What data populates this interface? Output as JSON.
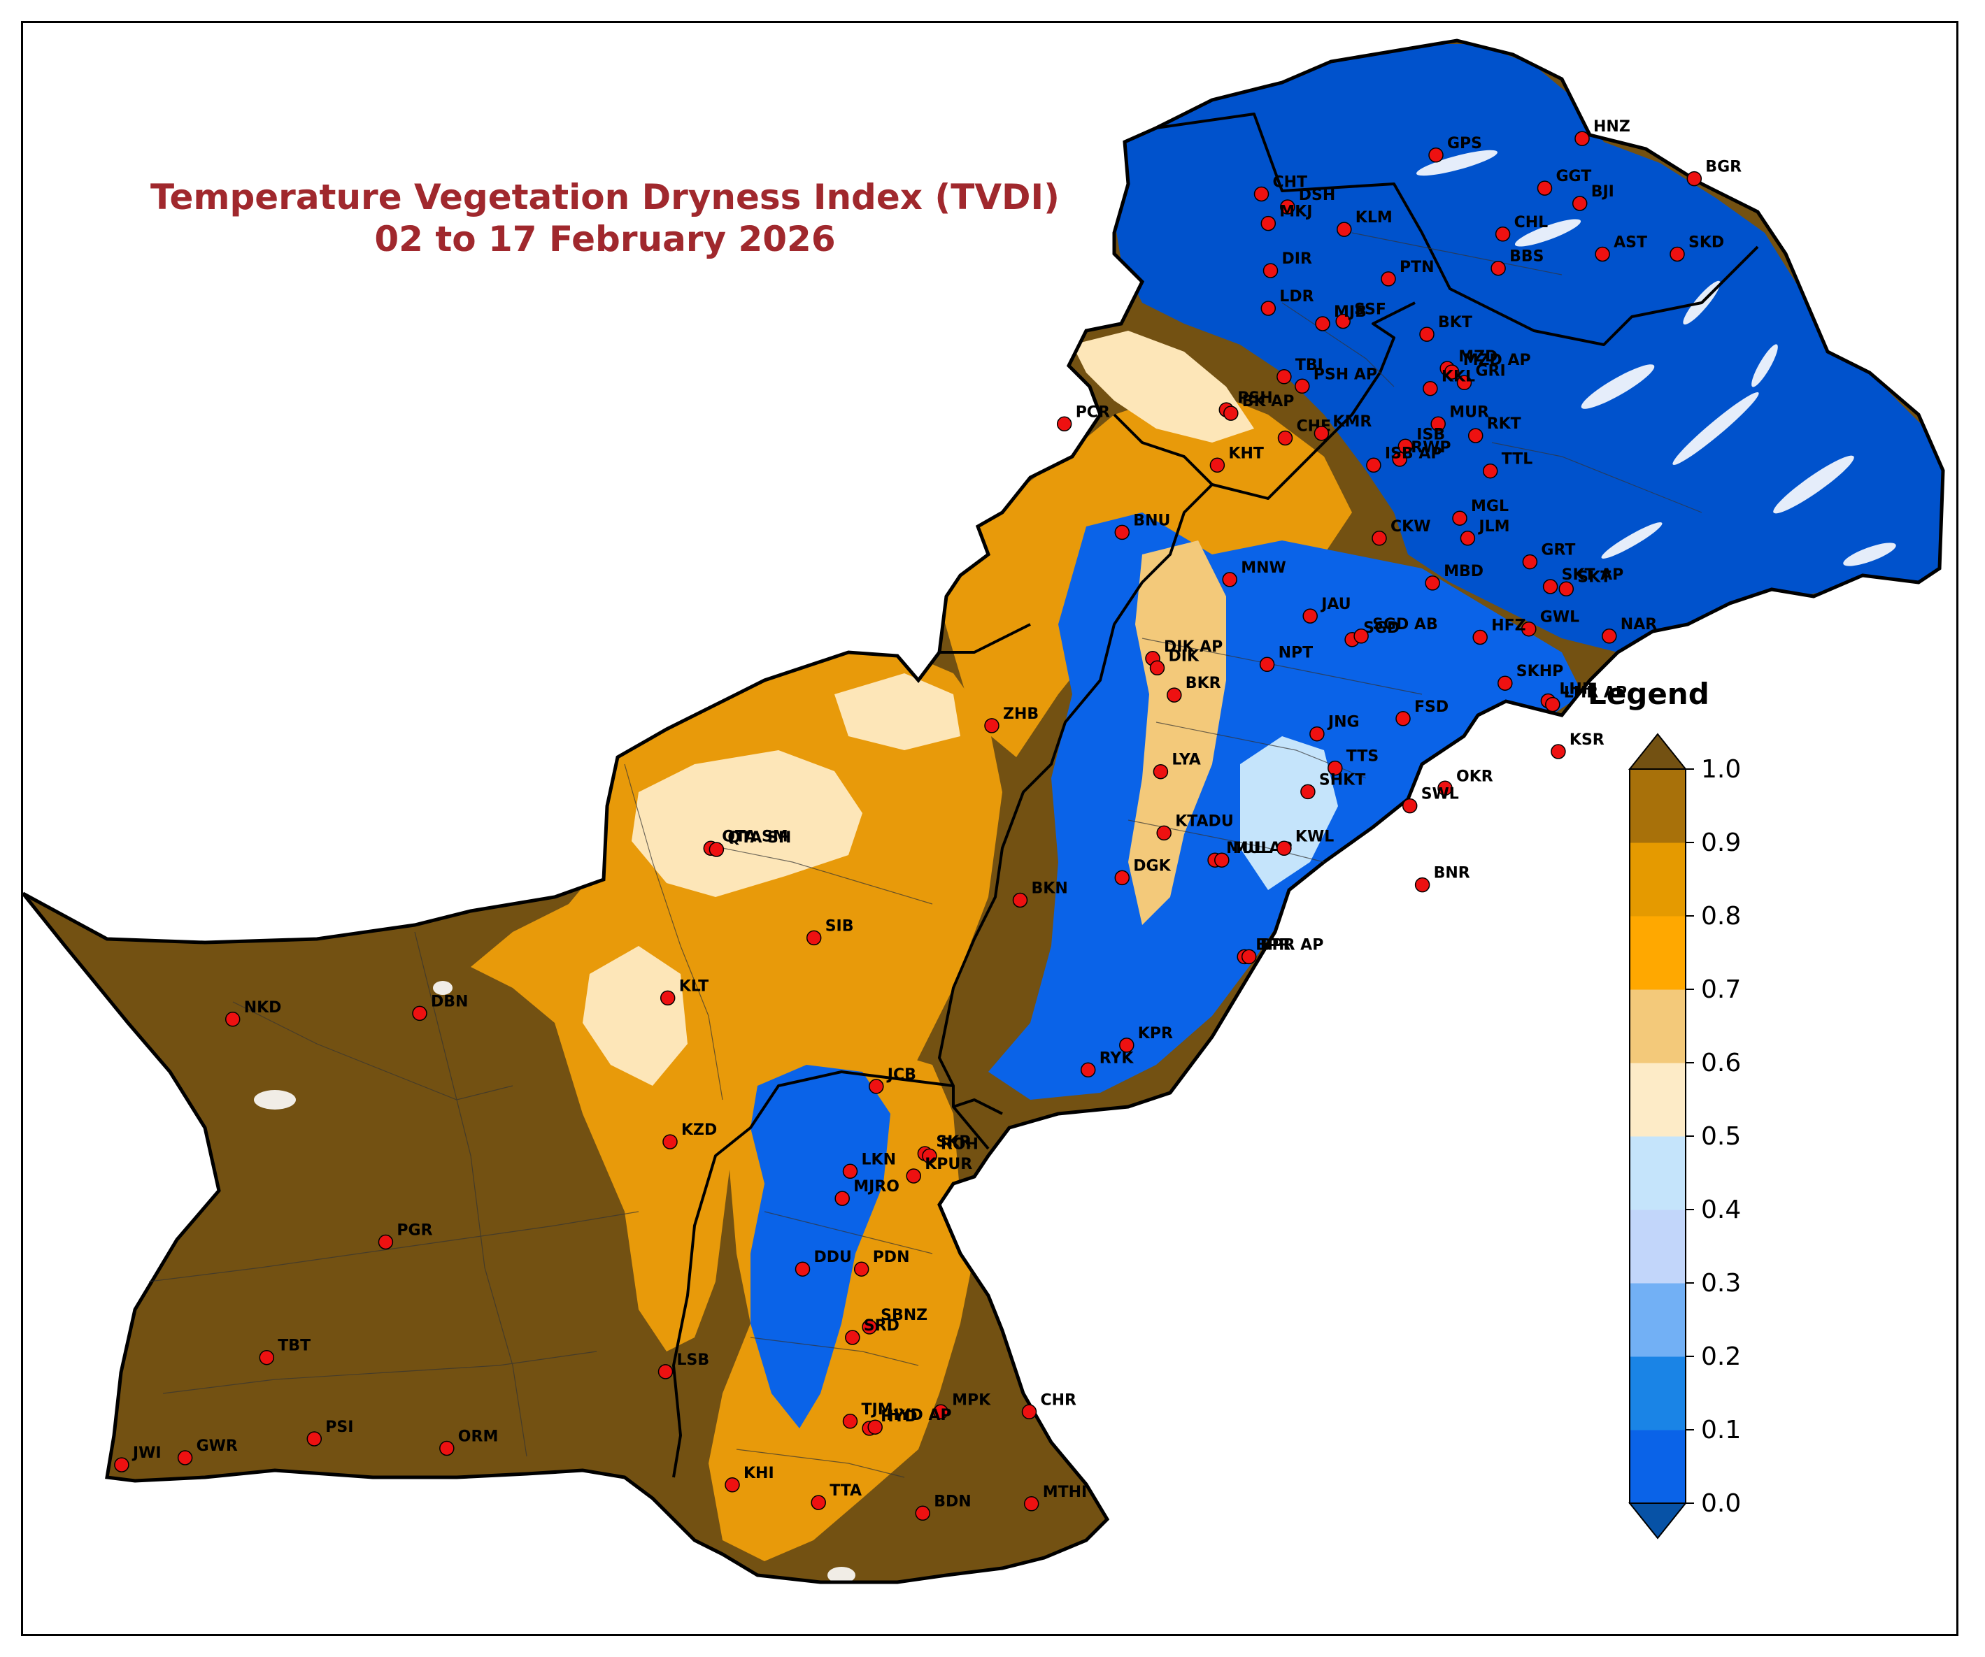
{
  "title": {
    "line1": "Temperature Vegetation Dryness Index (TVDI)",
    "line2": "02 to 17 February 2026"
  },
  "legend": {
    "title": "Legend",
    "ticks": [
      "0.0",
      "0.1",
      "0.2",
      "0.3",
      "0.4",
      "0.5",
      "0.6",
      "0.7",
      "0.8",
      "0.9",
      "1.0"
    ],
    "colors": [
      "#0052cc",
      "#0a63e8",
      "#1a84e6",
      "#72b0f5",
      "#c2d6fa",
      "#c5e4fb",
      "#fdebc7",
      "#f3c97a",
      "#ffa800",
      "#e59a00",
      "#a8710a"
    ],
    "below_color": "#0752a6",
    "above_color": "#735112"
  },
  "map_colors": {
    "dry": "#735112",
    "moderate": "#e89a0a",
    "light": "#fde6b8",
    "wet": "#0a63e8",
    "very_wet": "#0052cc",
    "station_fill": "#ee1111",
    "border": "#000000"
  },
  "stations": [
    {
      "code": "HNZ",
      "lon": 74.66,
      "lat": 36.32
    },
    {
      "code": "GPS",
      "lon": 73.37,
      "lat": 36.18
    },
    {
      "code": "BGR",
      "lon": 75.65,
      "lat": 35.98
    },
    {
      "code": "CHT",
      "lon": 71.83,
      "lat": 35.85
    },
    {
      "code": "GGT",
      "lon": 74.33,
      "lat": 35.9
    },
    {
      "code": "DSH",
      "lon": 72.06,
      "lat": 35.74
    },
    {
      "code": "BJI",
      "lon": 74.64,
      "lat": 35.77
    },
    {
      "code": "MKJ",
      "lon": 71.89,
      "lat": 35.6
    },
    {
      "code": "KLM",
      "lon": 72.56,
      "lat": 35.55
    },
    {
      "code": "CHL",
      "lon": 73.96,
      "lat": 35.51
    },
    {
      "code": "AST",
      "lon": 74.84,
      "lat": 35.34
    },
    {
      "code": "SKD",
      "lon": 75.5,
      "lat": 35.34
    },
    {
      "code": "DIR",
      "lon": 71.91,
      "lat": 35.2
    },
    {
      "code": "BBS",
      "lon": 73.92,
      "lat": 35.22
    },
    {
      "code": "PTN",
      "lon": 72.95,
      "lat": 35.13
    },
    {
      "code": "LDR",
      "lon": 71.89,
      "lat": 34.88
    },
    {
      "code": "SSF",
      "lon": 72.55,
      "lat": 34.77
    },
    {
      "code": "MJB",
      "lon": 72.37,
      "lat": 34.75
    },
    {
      "code": "BKT",
      "lon": 73.29,
      "lat": 34.66
    },
    {
      "code": "MZD",
      "lon": 73.47,
      "lat": 34.37
    },
    {
      "code": "MZD AP",
      "lon": 73.51,
      "lat": 34.34
    },
    {
      "code": "TBI",
      "lon": 72.03,
      "lat": 34.3
    },
    {
      "code": "GRI",
      "lon": 73.62,
      "lat": 34.25
    },
    {
      "code": "PSH AP",
      "lon": 72.19,
      "lat": 34.22
    },
    {
      "code": "PSH",
      "lon": 71.52,
      "lat": 34.02
    },
    {
      "code": "KKL",
      "lon": 73.32,
      "lat": 34.2
    },
    {
      "code": "BK AP",
      "lon": 71.56,
      "lat": 33.99
    },
    {
      "code": "CHE",
      "lon": 72.04,
      "lat": 33.78
    },
    {
      "code": "KMR",
      "lon": 72.36,
      "lat": 33.82
    },
    {
      "code": "MUR",
      "lon": 73.39,
      "lat": 33.9
    },
    {
      "code": "RKT",
      "lon": 73.72,
      "lat": 33.8
    },
    {
      "code": "PCR",
      "lon": 70.09,
      "lat": 33.9
    },
    {
      "code": "ISB",
      "lon": 73.1,
      "lat": 33.71
    },
    {
      "code": "RWP",
      "lon": 73.05,
      "lat": 33.6
    },
    {
      "code": "KHT",
      "lon": 71.44,
      "lat": 33.55
    },
    {
      "code": "ISB AP",
      "lon": 72.82,
      "lat": 33.55
    },
    {
      "code": "TTL",
      "lon": 73.85,
      "lat": 33.5
    },
    {
      "code": "MGL",
      "lon": 73.58,
      "lat": 33.1
    },
    {
      "code": "BNU",
      "lon": 70.6,
      "lat": 32.98
    },
    {
      "code": "JLM",
      "lon": 73.65,
      "lat": 32.93
    },
    {
      "code": "CKW",
      "lon": 72.87,
      "lat": 32.93
    },
    {
      "code": "GRT",
      "lon": 74.2,
      "lat": 32.73
    },
    {
      "code": "MNW",
      "lon": 71.55,
      "lat": 32.58
    },
    {
      "code": "MBD",
      "lon": 73.34,
      "lat": 32.55
    },
    {
      "code": "SKT AP",
      "lon": 74.38,
      "lat": 32.52
    },
    {
      "code": "SKT",
      "lon": 74.52,
      "lat": 32.5
    },
    {
      "code": "JAU",
      "lon": 72.26,
      "lat": 32.27
    },
    {
      "code": "SGD",
      "lon": 72.63,
      "lat": 32.07
    },
    {
      "code": "GWL",
      "lon": 74.19,
      "lat": 32.16
    },
    {
      "code": "SGD AB",
      "lon": 72.71,
      "lat": 32.1
    },
    {
      "code": "HFZ",
      "lon": 73.76,
      "lat": 32.09
    },
    {
      "code": "NAR",
      "lon": 74.9,
      "lat": 32.1
    },
    {
      "code": "DIK AP",
      "lon": 70.87,
      "lat": 31.91
    },
    {
      "code": "DIK",
      "lon": 70.91,
      "lat": 31.83
    },
    {
      "code": "NPT",
      "lon": 71.88,
      "lat": 31.86
    },
    {
      "code": "SKHP",
      "lon": 73.98,
      "lat": 31.7
    },
    {
      "code": "BKR",
      "lon": 71.06,
      "lat": 31.6
    },
    {
      "code": "LHR",
      "lon": 74.36,
      "lat": 31.55
    },
    {
      "code": "LHR AP",
      "lon": 74.4,
      "lat": 31.52
    },
    {
      "code": "ZHB",
      "lon": 69.45,
      "lat": 31.34
    },
    {
      "code": "FSD",
      "lon": 73.08,
      "lat": 31.4
    },
    {
      "code": "JNG",
      "lon": 72.32,
      "lat": 31.27
    },
    {
      "code": "TTS",
      "lon": 72.48,
      "lat": 30.98
    },
    {
      "code": "KSR",
      "lon": 74.45,
      "lat": 31.12
    },
    {
      "code": "LYA",
      "lon": 70.94,
      "lat": 30.95
    },
    {
      "code": "SHKT",
      "lon": 72.24,
      "lat": 30.78
    },
    {
      "code": "OKR",
      "lon": 73.45,
      "lat": 30.81
    },
    {
      "code": "SWL",
      "lon": 73.14,
      "lat": 30.66
    },
    {
      "code": "QTA SM",
      "lon": 66.97,
      "lat": 30.3
    },
    {
      "code": "QTA SH",
      "lon": 67.02,
      "lat": 30.29
    },
    {
      "code": "KTADU",
      "lon": 70.97,
      "lat": 30.43
    },
    {
      "code": "MUL AP",
      "lon": 71.42,
      "lat": 30.2
    },
    {
      "code": "MUL",
      "lon": 71.48,
      "lat": 30.2
    },
    {
      "code": "KWL",
      "lon": 72.03,
      "lat": 30.3
    },
    {
      "code": "DGK",
      "lon": 70.6,
      "lat": 30.05
    },
    {
      "code": "BKN",
      "lon": 69.7,
      "lat": 29.86
    },
    {
      "code": "BNR",
      "lon": 73.25,
      "lat": 29.99
    },
    {
      "code": "SIB",
      "lon": 67.88,
      "lat": 29.54
    },
    {
      "code": "BPR",
      "lon": 71.68,
      "lat": 29.38
    },
    {
      "code": "BPR AP",
      "lon": 71.72,
      "lat": 29.38
    },
    {
      "code": "KLT",
      "lon": 66.59,
      "lat": 29.03
    },
    {
      "code": "DBN",
      "lon": 64.4,
      "lat": 28.9
    },
    {
      "code": "NKD",
      "lon": 62.75,
      "lat": 28.85
    },
    {
      "code": "KPR",
      "lon": 70.64,
      "lat": 28.63
    },
    {
      "code": "RYK",
      "lon": 70.3,
      "lat": 28.42
    },
    {
      "code": "JCB",
      "lon": 68.43,
      "lat": 28.28
    },
    {
      "code": "SKR",
      "lon": 68.86,
      "lat": 27.71
    },
    {
      "code": "ROH",
      "lon": 68.9,
      "lat": 27.69
    },
    {
      "code": "KZD",
      "lon": 66.61,
      "lat": 27.81
    },
    {
      "code": "LKN",
      "lon": 68.2,
      "lat": 27.56
    },
    {
      "code": "KPUR",
      "lon": 68.76,
      "lat": 27.52
    },
    {
      "code": "MJRO",
      "lon": 68.13,
      "lat": 27.33
    },
    {
      "code": "PGR",
      "lon": 64.1,
      "lat": 26.96
    },
    {
      "code": "DDU",
      "lon": 67.78,
      "lat": 26.73
    },
    {
      "code": "PDN",
      "lon": 68.3,
      "lat": 26.73
    },
    {
      "code": "SBNZ",
      "lon": 68.37,
      "lat": 26.24
    },
    {
      "code": "SRD",
      "lon": 68.22,
      "lat": 26.15
    },
    {
      "code": "TBT",
      "lon": 63.05,
      "lat": 25.98
    },
    {
      "code": "LSB",
      "lon": 66.57,
      "lat": 25.86
    },
    {
      "code": "HYD",
      "lon": 68.37,
      "lat": 25.38
    },
    {
      "code": "MPK",
      "lon": 69.0,
      "lat": 25.52
    },
    {
      "code": "CHR",
      "lon": 69.78,
      "lat": 25.52
    },
    {
      "code": "TJM",
      "lon": 68.2,
      "lat": 25.44
    },
    {
      "code": "HYD AP",
      "lon": 68.42,
      "lat": 25.39
    },
    {
      "code": "PSI",
      "lon": 63.47,
      "lat": 25.29
    },
    {
      "code": "ORM",
      "lon": 64.64,
      "lat": 25.21
    },
    {
      "code": "GWR",
      "lon": 62.33,
      "lat": 25.13
    },
    {
      "code": "JWI",
      "lon": 61.77,
      "lat": 25.07
    },
    {
      "code": "KHI",
      "lon": 67.16,
      "lat": 24.9
    },
    {
      "code": "TTA",
      "lon": 67.92,
      "lat": 24.75
    },
    {
      "code": "BDN",
      "lon": 68.84,
      "lat": 24.66
    },
    {
      "code": "MTHI",
      "lon": 69.8,
      "lat": 24.74
    }
  ]
}
